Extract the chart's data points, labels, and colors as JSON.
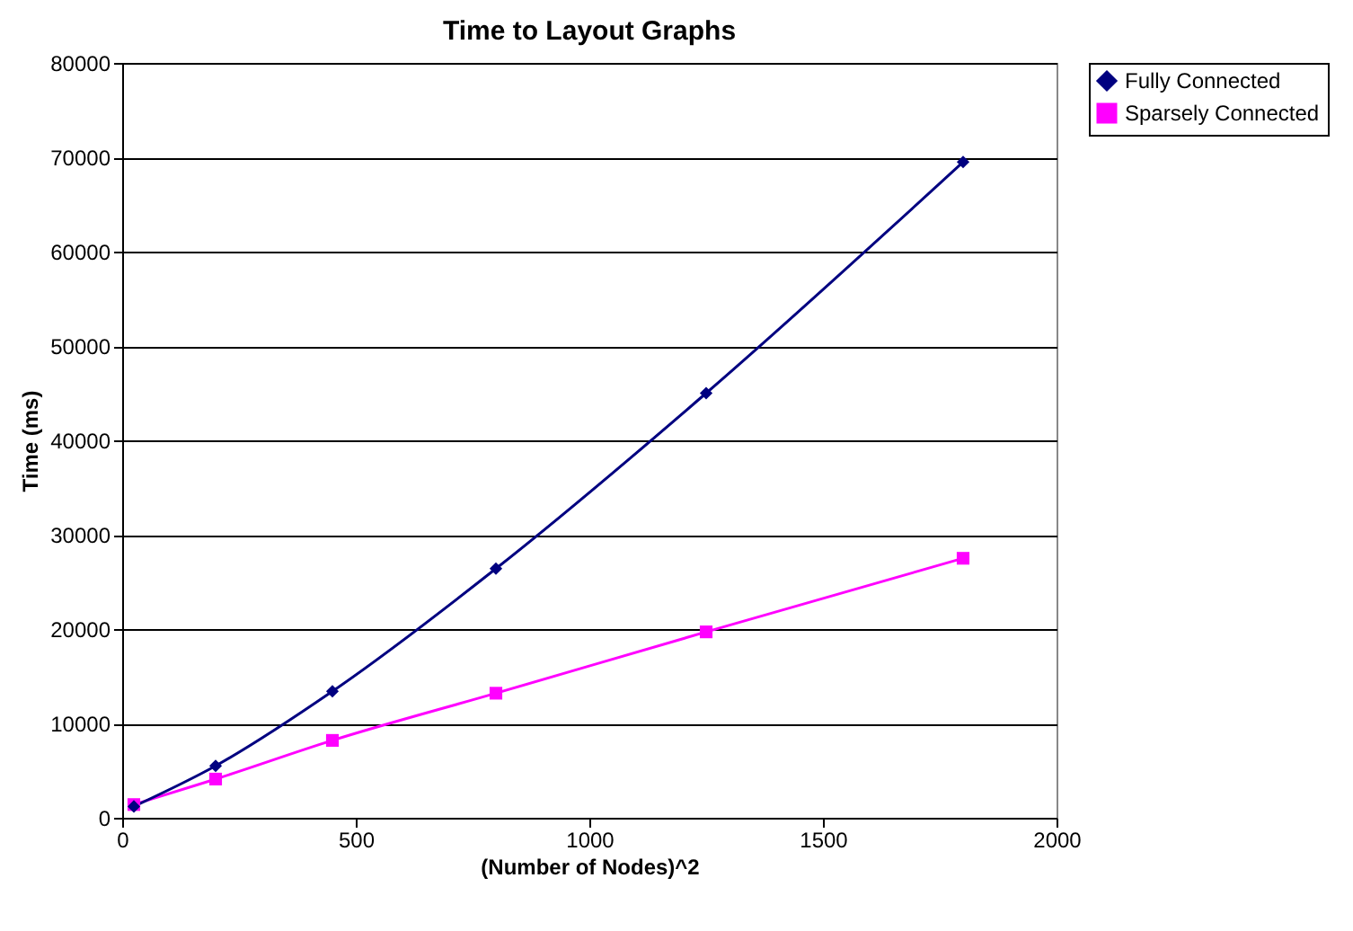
{
  "chart_data": {
    "type": "line",
    "title": "Time to Layout Graphs",
    "xlabel": "(Number of Nodes)^2",
    "ylabel": "Time (ms)",
    "x": [
      25,
      200,
      450,
      800,
      1250,
      1800
    ],
    "series": [
      {
        "name": "Fully Connected",
        "color": "#000080",
        "marker": "diamond",
        "values": [
          1200,
          5500,
          13400,
          26400,
          45000,
          69500
        ]
      },
      {
        "name": "Sparsely Connected",
        "color": "#ff00ff",
        "marker": "square",
        "values": [
          1400,
          4100,
          8200,
          13200,
          19700,
          27500
        ]
      }
    ],
    "xlim": [
      0,
      2000
    ],
    "xticks": [
      0,
      500,
      1000,
      1500,
      2000
    ],
    "ylim": [
      0,
      80000
    ],
    "yticks": [
      0,
      10000,
      20000,
      30000,
      40000,
      50000,
      60000,
      70000,
      80000
    ],
    "grid": "y",
    "legend": "right"
  }
}
